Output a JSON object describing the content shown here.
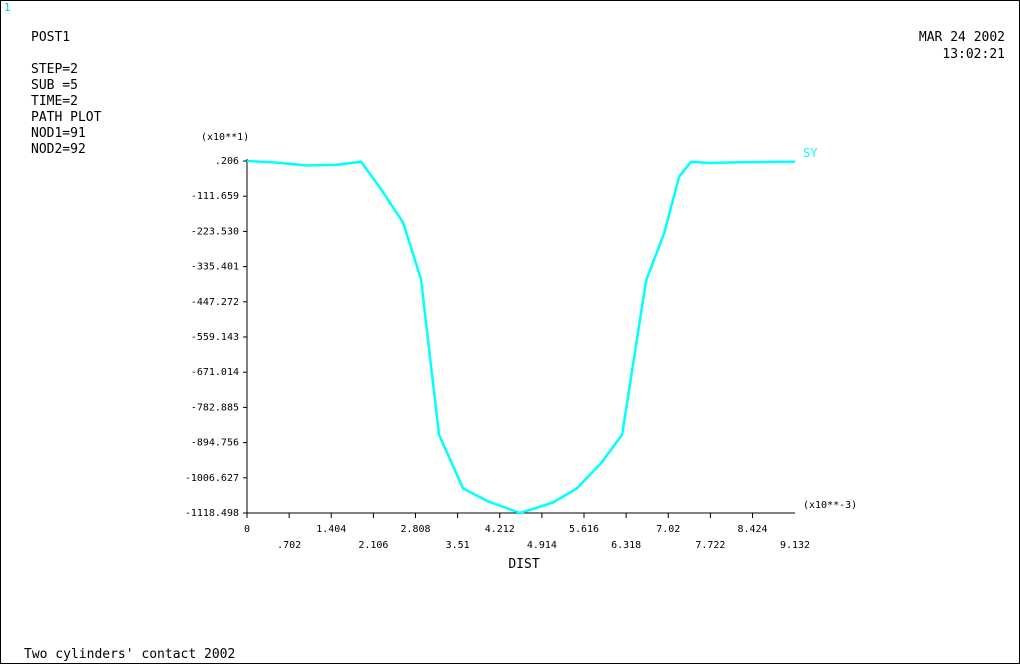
{
  "window_number": "1",
  "header": {
    "title": "POST1",
    "info_lines": [
      "STEP=2",
      "SUB =5",
      "TIME=2",
      "PATH PLOT",
      "NOD1=91",
      "NOD2=92"
    ],
    "date": "MAR 24 2002",
    "time": "13:02:21"
  },
  "caption": "Two cylinders' contact 2002",
  "colors": {
    "curve": "#00ffff",
    "axes": "#000000",
    "background": "#ffffff"
  },
  "chart_data": {
    "type": "line",
    "title": "",
    "xlabel": "DIST",
    "ylabel": "",
    "x_multiplier": "(x10**-3)",
    "y_multiplier": "(x10**1)",
    "xlim": [
      0,
      9.132
    ],
    "ylim": [
      -1118.498,
      0.206
    ],
    "x_tick_labels_row1": [
      "0",
      "1.404",
      "2.808",
      "4.212",
      "5.616",
      "7.02",
      "8.424"
    ],
    "x_tick_values_row1": [
      0,
      1.404,
      2.808,
      4.212,
      5.616,
      7.02,
      8.424
    ],
    "x_tick_labels_row2": [
      ".702",
      "2.106",
      "3.51",
      "4.914",
      "6.318",
      "7.722",
      "9.132"
    ],
    "x_tick_values_row2": [
      0.702,
      2.106,
      3.51,
      4.914,
      6.318,
      7.722,
      9.132
    ],
    "y_tick_labels": [
      ".206",
      "-111.659",
      "-223.530",
      "-335.401",
      "-447.272",
      "-559.143",
      "-671.014",
      "-782.885",
      "-894.756",
      "-1006.627",
      "-1118.498"
    ],
    "y_tick_values": [
      0.206,
      -111.659,
      -223.53,
      -335.401,
      -447.272,
      -559.143,
      -671.014,
      -782.885,
      -894.756,
      -1006.627,
      -1118.498
    ],
    "series": [
      {
        "name": "SY",
        "x": [
          0,
          0.5,
          1.0,
          1.5,
          1.9,
          2.2,
          2.6,
          2.9,
          3.2,
          3.6,
          4.0,
          4.55,
          5.1,
          5.5,
          5.9,
          6.25,
          6.65,
          6.95,
          7.2,
          7.4,
          7.7,
          8.2,
          9.132
        ],
        "y": [
          0.2,
          -5,
          -14,
          -12,
          -2,
          -80,
          -195,
          -375,
          -870,
          -1040,
          -1080,
          -1118.5,
          -1085,
          -1040,
          -960,
          -870,
          -380,
          -230,
          -50,
          -2,
          -6,
          -4,
          -2
        ]
      }
    ]
  }
}
